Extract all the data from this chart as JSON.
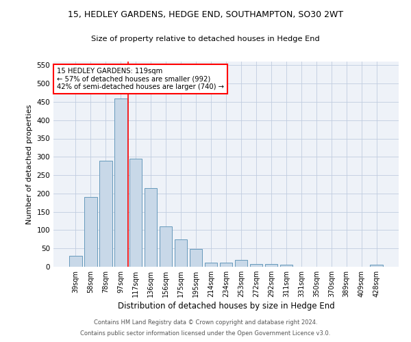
{
  "title_line1": "15, HEDLEY GARDENS, HEDGE END, SOUTHAMPTON, SO30 2WT",
  "title_line2": "Size of property relative to detached houses in Hedge End",
  "xlabel": "Distribution of detached houses by size in Hedge End",
  "ylabel": "Number of detached properties",
  "bar_labels": [
    "39sqm",
    "58sqm",
    "78sqm",
    "97sqm",
    "117sqm",
    "136sqm",
    "156sqm",
    "175sqm",
    "195sqm",
    "214sqm",
    "234sqm",
    "253sqm",
    "272sqm",
    "292sqm",
    "311sqm",
    "331sqm",
    "350sqm",
    "370sqm",
    "389sqm",
    "409sqm",
    "428sqm"
  ],
  "bar_values": [
    30,
    190,
    290,
    460,
    295,
    215,
    110,
    75,
    48,
    12,
    12,
    18,
    8,
    7,
    5,
    0,
    0,
    0,
    0,
    0,
    5
  ],
  "bar_color": "#c8d8e8",
  "bar_edge_color": "#6699bb",
  "annotation_text": "15 HEDLEY GARDENS: 119sqm\n← 57% of detached houses are smaller (992)\n42% of semi-detached houses are larger (740) →",
  "annotation_box_color": "white",
  "annotation_box_edgecolor": "red",
  "vline_color": "red",
  "ylim": [
    0,
    560
  ],
  "yticks": [
    0,
    50,
    100,
    150,
    200,
    250,
    300,
    350,
    400,
    450,
    500,
    550
  ],
  "footer_line1": "Contains HM Land Registry data © Crown copyright and database right 2024.",
  "footer_line2": "Contains public sector information licensed under the Open Government Licence v3.0.",
  "background_color": "#eef2f8",
  "grid_color": "#c0cce0"
}
